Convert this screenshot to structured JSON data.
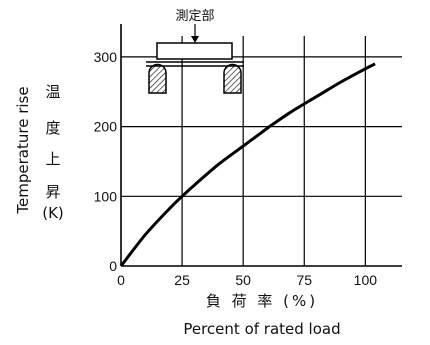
{
  "chart_data": {
    "type": "line",
    "x_tick_labels": [
      "0",
      "25",
      "50",
      "75",
      "100"
    ],
    "y_tick_labels": [
      "0",
      "100",
      "200",
      "300"
    ],
    "xlim": [
      0,
      115
    ],
    "ylim": [
      0,
      330
    ],
    "grid": true,
    "xlabel_jp": "負 荷 率 (%)",
    "xlabel_en": "Percent of rated load",
    "ylabel_en": "Temperature rise",
    "ylabel_jp_chars": [
      "温",
      "度",
      "上",
      "昇"
    ],
    "ylabel_unit": "(K)",
    "inset_label": "測定部",
    "series": [
      {
        "x": [
          0,
          10,
          20,
          25,
          30,
          40,
          50,
          60,
          62,
          70,
          80,
          90,
          100,
          104
        ],
        "y": [
          0,
          45,
          83,
          100,
          116,
          146,
          172,
          198,
          203,
          222,
          243,
          264,
          283,
          290
        ]
      }
    ],
    "line_color": "#000000"
  }
}
